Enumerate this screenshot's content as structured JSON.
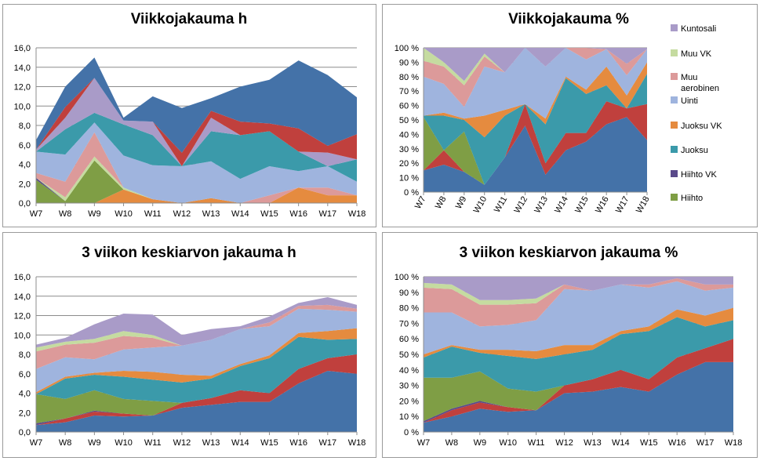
{
  "weeks": [
    "W7",
    "W8",
    "W9",
    "W10",
    "W11",
    "W12",
    "W13",
    "W14",
    "W15",
    "W16",
    "W17",
    "W18"
  ],
  "legend": {
    "items": [
      {
        "label_lines": [
          "Kuntosali"
        ],
        "color": "#a99bc8"
      },
      {
        "label_lines": [
          "Muu VK"
        ],
        "color": "#c5dba0"
      },
      {
        "label_lines": [
          "Muu",
          "aerobinen"
        ],
        "color": "#dc9a9a"
      },
      {
        "label_lines": [
          "Uinti"
        ],
        "color": "#9fb4de"
      },
      {
        "label_lines": [
          "Juoksu VK"
        ],
        "color": "#e58b3f"
      },
      {
        "label_lines": [
          "Juoksu"
        ],
        "color": "#3b9aaa"
      },
      {
        "label_lines": [
          "Hiihto VK"
        ],
        "color": "#5a4a8a"
      },
      {
        "label_lines": [
          "Hiihto"
        ],
        "color": "#7f9e45"
      }
    ]
  },
  "chart_data": [
    {
      "type": "area",
      "title": "Viikkojakauma h",
      "ylim": [
        0,
        16
      ],
      "ytick_labels": [
        "0,0",
        "2,0",
        "4,0",
        "6,0",
        "8,0",
        "10,0",
        "12,0",
        "14,0",
        "16,0"
      ],
      "x": [
        "W7",
        "W8",
        "W9",
        "W10",
        "W11",
        "W12",
        "W13",
        "W14",
        "W15",
        "W16",
        "W17",
        "W18"
      ],
      "stacked": true,
      "series": [
        {
          "name": "Juoksu VK",
          "color": "#e58b3f",
          "values": [
            0.0,
            0.0,
            0.0,
            1.4,
            0.4,
            0.0,
            0.5,
            0.0,
            0.0,
            1.6,
            0.8,
            0.8
          ]
        },
        {
          "name": "Hiihto",
          "color": "#7f9e45",
          "values": [
            2.4,
            0.2,
            4.4,
            0.0,
            0.0,
            0.0,
            0.0,
            0.0,
            0.0,
            0.0,
            0.0,
            0.0
          ]
        },
        {
          "name": "Hiihto VK",
          "color": "#5a4a8a",
          "values": [
            0.2,
            0.0,
            0.0,
            0.0,
            0.0,
            0.0,
            0.0,
            0.0,
            0.0,
            0.0,
            0.0,
            0.0
          ]
        },
        {
          "name": "Muu VK",
          "color": "#c5dba0",
          "values": [
            0.0,
            0.4,
            0.4,
            0.2,
            0.0,
            0.0,
            0.0,
            0.0,
            0.0,
            0.0,
            0.0,
            0.0
          ]
        },
        {
          "name": "Muu aerobinen",
          "color": "#dc9a9a",
          "values": [
            0.5,
            1.6,
            2.5,
            0.0,
            0.0,
            0.0,
            0.0,
            0.0,
            0.8,
            0.0,
            0.8,
            0.0
          ]
        },
        {
          "name": "Uinti",
          "color": "#9fb4de",
          "values": [
            2.2,
            2.8,
            1.0,
            3.3,
            3.5,
            3.8,
            3.8,
            2.5,
            3.0,
            1.7,
            2.2,
            1.4
          ]
        },
        {
          "name": "Juoksu",
          "color": "#3b9aaa",
          "values": [
            0.0,
            2.6,
            1.0,
            3.2,
            3.1,
            0.0,
            3.1,
            4.5,
            3.6,
            2.0,
            0.0,
            2.3
          ]
        },
        {
          "name": "Kuntosali",
          "color": "#a99bc8",
          "values": [
            0.2,
            1.2,
            3.6,
            0.4,
            1.4,
            0.0,
            1.4,
            0.0,
            0.0,
            0.0,
            1.4,
            0.0
          ]
        },
        {
          "name": "Hiihto",
          "color": "#c0403d",
          "values": [
            0.0,
            1.1,
            0.0,
            0.0,
            0.0,
            1.4,
            0.7,
            1.4,
            0.8,
            2.4,
            0.7,
            2.6
          ]
        },
        {
          "name": "Juoksu",
          "color": "#4472a8",
          "values": [
            1.0,
            2.1,
            2.1,
            0.3,
            2.6,
            4.6,
            1.3,
            3.6,
            4.5,
            7.0,
            7.3,
            3.8
          ]
        }
      ]
    },
    {
      "type": "area",
      "title": "Viikkojakauma %",
      "ylim": [
        0,
        100
      ],
      "ytick_labels": [
        "0 %",
        "10 %",
        "20 %",
        "30 %",
        "40 %",
        "50 %",
        "60 %",
        "70 %",
        "80 %",
        "90 %",
        "100 %"
      ],
      "x": [
        "W7",
        "W8",
        "W9",
        "W10",
        "W11",
        "W12",
        "W13",
        "W14",
        "W15",
        "W16",
        "W17",
        "W18"
      ],
      "stacked": true,
      "series": [
        {
          "name": "Juoksu",
          "color": "#4472a8",
          "values": [
            15,
            19,
            14,
            5,
            24,
            46,
            12,
            29,
            35,
            47,
            52,
            36
          ]
        },
        {
          "name": "Juoksu VK",
          "color": "#c0403d",
          "values": [
            0,
            10,
            0,
            0,
            0,
            15,
            8,
            12,
            6,
            16,
            6,
            25
          ]
        },
        {
          "name": "Hiihto VK",
          "color": "#5a4a8a",
          "values": [
            0,
            0,
            0,
            0,
            0,
            0,
            0,
            0,
            0,
            0,
            0,
            0
          ]
        },
        {
          "name": "Hiihto",
          "color": "#7f9e45",
          "values": [
            37,
            0,
            28,
            0,
            0,
            0,
            0,
            0,
            0,
            0,
            0,
            0
          ]
        },
        {
          "name": "Juoksu",
          "color": "#3b9aaa",
          "values": [
            1,
            24,
            8,
            33,
            29,
            0,
            27,
            38,
            27,
            11,
            0,
            21
          ]
        },
        {
          "name": "Juoksu VK",
          "color": "#e58b3f",
          "values": [
            0,
            2,
            1,
            15,
            4,
            0,
            4,
            1,
            3,
            13,
            9,
            8
          ]
        },
        {
          "name": "Uinti",
          "color": "#9fb4de",
          "values": [
            27,
            20,
            8,
            34,
            26,
            39,
            36,
            20,
            21,
            12,
            14,
            9
          ]
        },
        {
          "name": "Muu aerobinen",
          "color": "#dc9a9a",
          "values": [
            11,
            12,
            15,
            7,
            0,
            0,
            0,
            0,
            8,
            0,
            8,
            0
          ]
        },
        {
          "name": "Muu VK",
          "color": "#c5dba0",
          "values": [
            9,
            3,
            3,
            2,
            0,
            0,
            0,
            0,
            0,
            0,
            0,
            0
          ]
        },
        {
          "name": "Kuntosali",
          "color": "#a99bc8",
          "values": [
            0,
            10,
            23,
            4,
            17,
            0,
            13,
            0,
            0,
            1,
            11,
            1
          ]
        }
      ]
    },
    {
      "type": "area",
      "title": "3 viikon keskiarvon jakauma h",
      "ylim": [
        0,
        16
      ],
      "ytick_labels": [
        "0,0",
        "2,0",
        "4,0",
        "6,0",
        "8,0",
        "10,0",
        "12,0",
        "14,0",
        "16,0"
      ],
      "x": [
        "W7",
        "W8",
        "W9",
        "W10",
        "W11",
        "W12",
        "W13",
        "W14",
        "W15",
        "W16",
        "W17",
        "W18"
      ],
      "stacked": true,
      "series": [
        {
          "name": "Juoksu",
          "color": "#4472a8",
          "values": [
            0.7,
            1.0,
            1.7,
            1.6,
            1.7,
            2.5,
            2.8,
            3.1,
            3.1,
            5.0,
            6.3,
            6.0
          ]
        },
        {
          "name": "Juoksu VK",
          "color": "#c0403d",
          "values": [
            0.0,
            0.4,
            0.4,
            0.3,
            0.0,
            0.5,
            0.7,
            1.2,
            0.9,
            1.5,
            1.3,
            2.0
          ]
        },
        {
          "name": "Hiihto VK",
          "color": "#5a4a8a",
          "values": [
            0.2,
            0.0,
            0.1,
            0.0,
            0.0,
            0.0,
            0.0,
            0.0,
            0.0,
            0.0,
            0.0,
            0.0
          ]
        },
        {
          "name": "Hiihto",
          "color": "#7f9e45",
          "values": [
            3.0,
            2.0,
            2.1,
            1.5,
            1.5,
            0.0,
            0.0,
            0.0,
            0.0,
            0.0,
            0.0,
            0.0
          ]
        },
        {
          "name": "Juoksu",
          "color": "#3b9aaa",
          "values": [
            0.0,
            2.1,
            1.6,
            2.3,
            2.2,
            2.1,
            2.0,
            2.5,
            3.6,
            3.3,
            1.9,
            1.6
          ]
        },
        {
          "name": "Juoksu VK",
          "color": "#e58b3f",
          "values": [
            0.2,
            0.2,
            0.2,
            0.6,
            0.8,
            0.8,
            0.3,
            0.2,
            0.3,
            0.4,
            0.9,
            1.1
          ]
        },
        {
          "name": "Uinti",
          "color": "#9fb4de",
          "values": [
            2.4,
            2.0,
            1.4,
            2.2,
            2.5,
            3.0,
            3.7,
            3.6,
            3.0,
            2.5,
            2.2,
            1.7
          ]
        },
        {
          "name": "Muu aerobinen",
          "color": "#dc9a9a",
          "values": [
            1.8,
            1.3,
            1.7,
            1.4,
            1.0,
            0.0,
            0.0,
            0.0,
            0.4,
            0.3,
            0.5,
            0.3
          ]
        },
        {
          "name": "Muu VK",
          "color": "#c5dba0",
          "values": [
            0.4,
            0.3,
            0.4,
            0.5,
            0.3,
            0.0,
            0.0,
            0.0,
            0.0,
            0.0,
            0.0,
            0.0
          ]
        },
        {
          "name": "Kuntosali",
          "color": "#a99bc8",
          "values": [
            0.3,
            0.4,
            1.5,
            1.8,
            2.1,
            1.1,
            1.1,
            0.3,
            0.6,
            0.3,
            0.8,
            0.4
          ]
        }
      ]
    },
    {
      "type": "area",
      "title": "3 viikon keskiarvon jakauma %",
      "ylim": [
        0,
        100
      ],
      "ytick_labels": [
        "0 %",
        "10 %",
        "20 %",
        "30 %",
        "40 %",
        "50 %",
        "60 %",
        "70 %",
        "80 %",
        "90 %",
        "100 %"
      ],
      "x": [
        "W7",
        "W8",
        "W9",
        "W10",
        "W11",
        "W12",
        "W13",
        "W14",
        "W15",
        "W16",
        "W17",
        "W18"
      ],
      "stacked": true,
      "series": [
        {
          "name": "Juoksu",
          "color": "#4472a8",
          "values": [
            6,
            10,
            15,
            13,
            14,
            25,
            26,
            29,
            26,
            37,
            45,
            45
          ]
        },
        {
          "name": "Juoksu VK",
          "color": "#c0403d",
          "values": [
            0,
            4,
            4,
            3,
            0,
            5,
            8,
            11,
            8,
            11,
            9,
            15
          ]
        },
        {
          "name": "Hiihto VK",
          "color": "#5a4a8a",
          "values": [
            1,
            1,
            1,
            0,
            0,
            0,
            0,
            0,
            0,
            0,
            0,
            0
          ]
        },
        {
          "name": "Hiihto",
          "color": "#7f9e45",
          "values": [
            28,
            20,
            19,
            12,
            12,
            0,
            0,
            0,
            0,
            0,
            0,
            0
          ]
        },
        {
          "name": "Juoksu",
          "color": "#3b9aaa",
          "values": [
            13,
            20,
            12,
            21,
            21,
            20,
            19,
            23,
            31,
            26,
            14,
            12
          ]
        },
        {
          "name": "Juoksu VK",
          "color": "#e58b3f",
          "values": [
            2,
            1,
            2,
            4,
            5,
            6,
            3,
            2,
            3,
            5,
            7,
            8
          ]
        },
        {
          "name": "Uinti",
          "color": "#9fb4de",
          "values": [
            27,
            21,
            15,
            16,
            20,
            36,
            35,
            30,
            25,
            18,
            16,
            13
          ]
        },
        {
          "name": "Muu aerobinen",
          "color": "#dc9a9a",
          "values": [
            16,
            15,
            14,
            13,
            11,
            3,
            0,
            0,
            2,
            2,
            4,
            2
          ]
        },
        {
          "name": "Muu VK",
          "color": "#c5dba0",
          "values": [
            3,
            3,
            3,
            3,
            3,
            0,
            0,
            0,
            0,
            0,
            0,
            0
          ]
        },
        {
          "name": "Kuntosali",
          "color": "#a99bc8",
          "values": [
            4,
            5,
            15,
            15,
            14,
            5,
            9,
            5,
            5,
            1,
            5,
            5
          ]
        }
      ]
    }
  ]
}
